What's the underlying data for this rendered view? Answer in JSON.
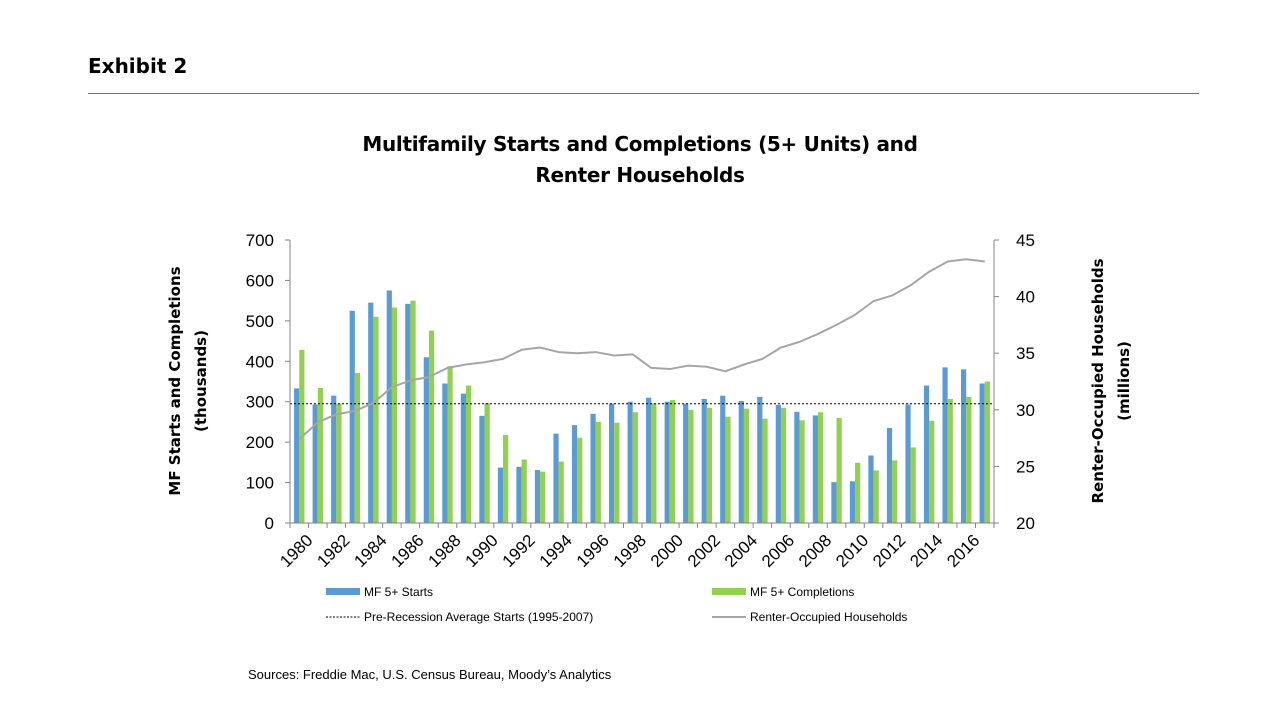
{
  "header": {
    "title": "Exhibit 2"
  },
  "chart_data": {
    "type": "bar",
    "title_lines": [
      "Multifamily Starts and Completions (5+ Units) and",
      "Renter Households"
    ],
    "y_left_label_lines": [
      "MF Starts and Completions",
      "(thousands)"
    ],
    "y_right_label_lines": [
      "Renter-Occupied Households",
      "(millions)"
    ],
    "y_left_lim": [
      0,
      700
    ],
    "y_left_ticks": [
      0,
      100,
      200,
      300,
      400,
      500,
      600,
      700
    ],
    "y_right_lim": [
      20,
      45
    ],
    "y_right_ticks": [
      20,
      25,
      30,
      35,
      40,
      45
    ],
    "categories": [
      1980,
      1981,
      1982,
      1983,
      1984,
      1985,
      1986,
      1987,
      1988,
      1989,
      1990,
      1991,
      1992,
      1993,
      1994,
      1995,
      1996,
      1997,
      1998,
      1999,
      2000,
      2001,
      2002,
      2003,
      2004,
      2005,
      2006,
      2007,
      2008,
      2009,
      2010,
      2011,
      2012,
      2013,
      2014,
      2015,
      2016,
      2017
    ],
    "x_tick_labels": [
      "1980",
      "1982",
      "1984",
      "1986",
      "1988",
      "1990",
      "1992",
      "1994",
      "1996",
      "1998",
      "2000",
      "2002",
      "2004",
      "2006",
      "2008",
      "2010",
      "2012",
      "2014",
      "2016"
    ],
    "series": [
      {
        "name": "MF 5+ Starts",
        "kind": "bar",
        "axis": "left",
        "color": "#5b9bd5",
        "values": [
          333,
          293,
          315,
          525,
          545,
          575,
          542,
          410,
          345,
          320,
          265,
          137,
          139,
          131,
          221,
          242,
          270,
          295,
          300,
          310,
          300,
          295,
          307,
          315,
          302,
          312,
          292,
          275,
          266,
          101,
          103,
          167,
          235,
          293,
          340,
          385,
          380,
          345
        ]
      },
      {
        "name": "MF 5+ Completions",
        "kind": "bar",
        "axis": "left",
        "color": "#92d050",
        "values": [
          428,
          334,
          295,
          371,
          510,
          533,
          550,
          476,
          388,
          340,
          297,
          218,
          157,
          127,
          152,
          211,
          250,
          248,
          274,
          296,
          304,
          280,
          285,
          263,
          283,
          258,
          285,
          254,
          274,
          260,
          149,
          130,
          155,
          187,
          253,
          307,
          312,
          350
        ]
      },
      {
        "name": "Pre-Recession Average Starts (1995-2007)",
        "kind": "hline",
        "axis": "left",
        "color": "#000000",
        "value": 295
      },
      {
        "name": "Renter-Occupied Households",
        "kind": "line",
        "axis": "right",
        "color": "#a6a6a6",
        "values": [
          27.4,
          28.9,
          29.6,
          29.9,
          30.6,
          32.0,
          32.6,
          32.9,
          33.7,
          34.0,
          34.2,
          34.5,
          35.3,
          35.5,
          35.1,
          35.0,
          35.1,
          34.8,
          34.9,
          33.7,
          33.6,
          33.9,
          33.8,
          33.4,
          34.0,
          34.5,
          35.5,
          36.0,
          36.7,
          37.5,
          38.4,
          39.6,
          40.1,
          41.0,
          42.2,
          43.1,
          43.3,
          43.1
        ]
      }
    ],
    "legend": [
      {
        "label": "MF 5+ Starts",
        "symbol": "rect",
        "color": "#5b9bd5"
      },
      {
        "label": "MF 5+ Completions",
        "symbol": "rect",
        "color": "#92d050"
      },
      {
        "label": "Pre-Recession Average Starts (1995-2007)",
        "symbol": "dotted-line",
        "color": "#000000"
      },
      {
        "label": "Renter-Occupied Households",
        "symbol": "line",
        "color": "#a6a6a6"
      }
    ],
    "legend_position": "bottom",
    "grid": false
  },
  "footer": {
    "sources": "Sources: Freddie Mac, U.S. Census Bureau, Moody’s Analytics"
  }
}
